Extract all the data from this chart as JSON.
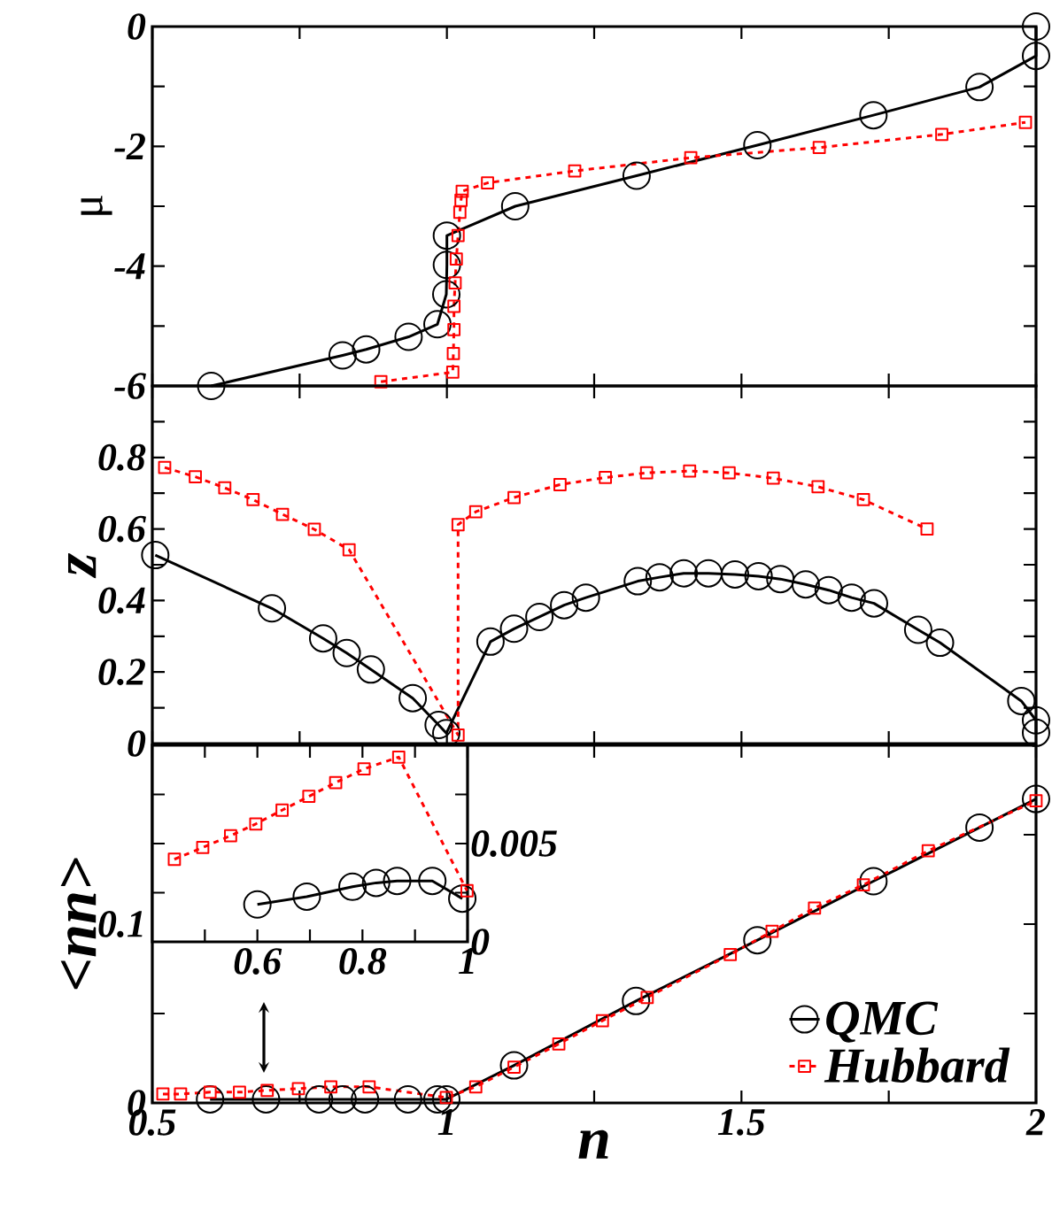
{
  "chart_data": [
    {
      "type": "line",
      "ylabel": "μ",
      "xlim": [
        0.5,
        2
      ],
      "ylim": [
        -6,
        0
      ],
      "tick_labels": "y",
      "legend": false,
      "xticks": [
        0.5,
        0.75,
        1,
        1.25,
        1.5,
        1.75,
        2
      ],
      "yticks": [
        -6,
        {
          "value": -5,
          "label": null
        },
        -4,
        {
          "value": -3,
          "label": null
        },
        -2,
        {
          "value": -1,
          "label": null
        },
        0
      ],
      "series": [
        {
          "color": "#000000",
          "marker": "circle",
          "line_style": "solid",
          "x": [
            0.6,
            0.823,
            0.863,
            0.935,
            0.984,
            0.999,
            1.0,
            1.0,
            1.116,
            1.322,
            1.527,
            1.724,
            1.904,
            2.0,
            2.0
          ],
          "values": [
            -6.0,
            -5.49,
            -5.39,
            -5.18,
            -4.97,
            -4.47,
            -3.98,
            -3.49,
            -3.0,
            -2.49,
            -1.98,
            -1.48,
            -1.01,
            -0.49,
            0
          ]
        },
        {
          "color": "#ff0000",
          "marker": "square",
          "line_style": "dashed",
          "x": [
            0.888,
            1.01,
            1.011,
            1.012,
            1.012,
            1.014,
            1.016,
            1.019,
            1.022,
            1.024,
            1.026,
            1.069,
            1.217,
            1.414,
            1.632,
            1.84,
            1.982
          ],
          "values": [
            -5.93,
            -5.77,
            -5.46,
            -5.06,
            -4.67,
            -4.28,
            -3.88,
            -3.49,
            -3.1,
            -2.9,
            -2.75,
            -2.61,
            -2.41,
            -2.19,
            -2.02,
            -1.8,
            -1.6
          ]
        }
      ]
    },
    {
      "type": "line",
      "ylabel": "z",
      "xlim": [
        0.5,
        2
      ],
      "ylim": [
        0,
        1
      ],
      "tick_labels": "y",
      "legend": false,
      "xticks": [
        0.5,
        0.75,
        1,
        1.25,
        1.5,
        1.75,
        2
      ],
      "yticks": [
        0,
        {
          "value": 0.1,
          "label": null
        },
        0.2,
        {
          "value": 0.3,
          "label": null
        },
        0.4,
        {
          "value": 0.5,
          "label": null
        },
        0.6,
        {
          "value": 0.7,
          "label": null
        },
        0.8,
        {
          "value": 0.9,
          "label": null
        }
      ],
      "series": [
        {
          "color": "#000000",
          "marker": "circle",
          "line_style": "solid",
          "x": [
            0.505,
            0.703,
            0.79,
            0.83,
            0.871,
            0.942,
            0.986,
            0.999,
            1.074,
            1.114,
            1.157,
            1.199,
            1.236,
            1.324,
            1.361,
            1.402,
            1.444,
            1.489,
            1.529,
            1.566,
            1.609,
            1.648,
            1.687,
            1.725,
            1.8,
            1.837,
            1.975,
            2.0,
            2.0
          ],
          "values": [
            0.527,
            0.378,
            0.294,
            0.253,
            0.207,
            0.127,
            0.052,
            0.029,
            0.285,
            0.321,
            0.354,
            0.387,
            0.408,
            0.454,
            0.465,
            0.476,
            0.476,
            0.473,
            0.468,
            0.46,
            0.445,
            0.429,
            0.408,
            0.392,
            0.318,
            0.282,
            0.119,
            0.065,
            0.03
          ]
        },
        {
          "color": "#ff0000",
          "marker": "square",
          "line_style": "dashed",
          "x": [
            0.521,
            0.573,
            0.623,
            0.671,
            0.721,
            0.775,
            0.834,
            1.019,
            1.019,
            1.049,
            1.114,
            1.192,
            1.269,
            1.339,
            1.412,
            1.479,
            1.554,
            1.63,
            1.707,
            1.815
          ],
          "values": [
            0.772,
            0.746,
            0.715,
            0.682,
            0.641,
            0.599,
            0.542,
            0.024,
            0.612,
            0.648,
            0.688,
            0.724,
            0.744,
            0.757,
            0.762,
            0.757,
            0.742,
            0.718,
            0.682,
            0.6
          ]
        }
      ]
    },
    {
      "type": "line",
      "ylabel": "<nn>",
      "xlabel": "n",
      "xlim": [
        0.5,
        2
      ],
      "ylim": [
        0,
        0.2
      ],
      "legend": "bottom right",
      "xticks": [
        0.5,
        {
          "value": 0.75,
          "label": null
        },
        1,
        {
          "value": 1.25,
          "label": null
        },
        1.5,
        {
          "value": 1.75,
          "label": null
        },
        2
      ],
      "yticks": [
        0,
        {
          "value": 0.05,
          "label": null
        },
        0.1,
        {
          "value": 0.15,
          "label": null
        }
      ],
      "series": [
        {
          "name": "QMC",
          "color": "#000000",
          "marker": "circle",
          "line_style": "solid",
          "x": [
            0.598,
            0.693,
            0.783,
            0.823,
            0.861,
            0.934,
            0.984,
            0.999,
            1.114,
            1.321,
            1.527,
            1.724,
            1.904,
            2.0
          ],
          "values": [
            0.002,
            0.002,
            0.002,
            0.002,
            0.002,
            0.002,
            0.002,
            0.002,
            0.021,
            0.057,
            0.091,
            0.124,
            0.154,
            0.17
          ]
        },
        {
          "name": "Hubbard",
          "color": "#ff0000",
          "marker": "square",
          "line_style": "dashed",
          "x": [
            0.518,
            0.548,
            0.598,
            0.648,
            0.695,
            0.748,
            0.803,
            0.868,
            0.999,
            1.049,
            1.114,
            1.19,
            1.264,
            1.34,
            1.481,
            1.552,
            1.624,
            1.707,
            1.817,
            2.0
          ],
          "values": [
            0.005,
            0.005,
            0.006,
            0.006,
            0.007,
            0.008,
            0.009,
            0.009,
            0.003,
            0.009,
            0.02,
            0.033,
            0.046,
            0.059,
            0.083,
            0.096,
            0.109,
            0.122,
            0.141,
            0.169
          ]
        }
      ]
    },
    {
      "type": "line",
      "xlim": [
        0.4,
        1.0
      ],
      "ylim": [
        0,
        0.01
      ],
      "legend": false,
      "xticks": [
        {
          "value": 0.5,
          "label": null
        },
        0.6,
        {
          "value": 0.7,
          "label": null
        },
        0.8,
        {
          "value": 0.9,
          "label": null
        },
        1
      ],
      "yticks": [
        0,
        {
          "value": 0.0025,
          "label": null
        },
        0.005,
        {
          "value": 0.0075,
          "label": null
        }
      ],
      "series": [
        {
          "color": "#000000",
          "marker": "circle",
          "line_style": "solid",
          "x": [
            0.6,
            0.694,
            0.781,
            0.826,
            0.866,
            0.933,
            0.99
          ],
          "values": [
            0.0019,
            0.0023,
            0.0028,
            0.003,
            0.0031,
            0.0031,
            0.0022
          ]
        },
        {
          "color": "#ff0000",
          "marker": "square",
          "line_style": "dashed",
          "x": [
            0.442,
            0.496,
            0.549,
            0.597,
            0.647,
            0.698,
            0.749,
            0.803,
            0.869,
            0.999
          ],
          "values": [
            0.0042,
            0.0048,
            0.0054,
            0.006,
            0.0067,
            0.0074,
            0.0081,
            0.0088,
            0.0094,
            0.0026
          ]
        }
      ]
    }
  ]
}
